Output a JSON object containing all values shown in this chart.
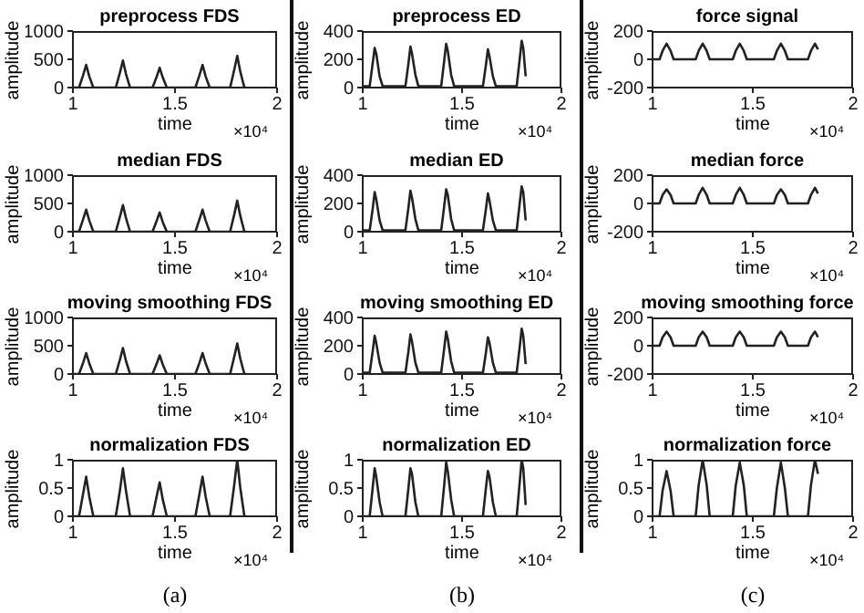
{
  "chart_data": [
    {
      "type": "line",
      "title": "preprocess FDS",
      "xlabel": "time",
      "ylabel": "amplitude",
      "color": "#222222",
      "xlim": [
        1,
        2
      ],
      "xticks": [
        1,
        1.5,
        2
      ],
      "ylim": [
        0,
        1000
      ],
      "yticks": [
        0,
        500,
        1000
      ],
      "annotations": [
        "×10⁴"
      ],
      "x": [
        1,
        1.03,
        1.05,
        1.065,
        1.08,
        1.1,
        1.21,
        1.23,
        1.245,
        1.26,
        1.28,
        1.39,
        1.41,
        1.425,
        1.44,
        1.46,
        1.6,
        1.62,
        1.635,
        1.65,
        1.67,
        1.77,
        1.79,
        1.805,
        1.82,
        1.84,
        1.85
      ],
      "values": [
        0,
        0,
        220,
        400,
        200,
        0,
        0,
        260,
        480,
        240,
        0,
        0,
        190,
        350,
        180,
        0,
        0,
        220,
        400,
        200,
        0,
        0,
        310,
        560,
        280,
        0,
        0
      ]
    },
    {
      "type": "line",
      "title": "median FDS",
      "xlabel": "time",
      "ylabel": "amplitude",
      "color": "#222222",
      "xlim": [
        1,
        2
      ],
      "xticks": [
        1,
        1.5,
        2
      ],
      "ylim": [
        0,
        1000
      ],
      "yticks": [
        0,
        500,
        1000
      ],
      "annotations": [
        "×10⁴"
      ],
      "x": [
        1,
        1.03,
        1.05,
        1.065,
        1.08,
        1.1,
        1.21,
        1.23,
        1.245,
        1.26,
        1.28,
        1.39,
        1.41,
        1.425,
        1.44,
        1.46,
        1.6,
        1.62,
        1.635,
        1.65,
        1.67,
        1.77,
        1.79,
        1.805,
        1.82,
        1.84,
        1.85
      ],
      "values": [
        0,
        0,
        220,
        390,
        200,
        0,
        0,
        260,
        470,
        240,
        0,
        0,
        190,
        340,
        170,
        0,
        0,
        220,
        390,
        200,
        0,
        0,
        300,
        550,
        280,
        0,
        0
      ]
    },
    {
      "type": "line",
      "title": "moving smoothing FDS",
      "xlabel": "time",
      "ylabel": "amplitude",
      "color": "#222222",
      "xlim": [
        1,
        2
      ],
      "xticks": [
        1,
        1.5,
        2
      ],
      "ylim": [
        0,
        1000
      ],
      "yticks": [
        0,
        500,
        1000
      ],
      "annotations": [
        "×10⁴"
      ],
      "x": [
        1,
        1.03,
        1.05,
        1.065,
        1.08,
        1.1,
        1.21,
        1.23,
        1.245,
        1.26,
        1.28,
        1.39,
        1.41,
        1.425,
        1.44,
        1.46,
        1.6,
        1.62,
        1.635,
        1.65,
        1.67,
        1.77,
        1.79,
        1.805,
        1.82,
        1.84,
        1.85
      ],
      "values": [
        0,
        0,
        200,
        370,
        190,
        0,
        0,
        250,
        460,
        230,
        0,
        0,
        180,
        330,
        170,
        0,
        0,
        200,
        370,
        190,
        0,
        0,
        300,
        540,
        270,
        0,
        0
      ]
    },
    {
      "type": "line",
      "title": "normalization FDS",
      "xlabel": "time",
      "ylabel": "amplitude",
      "color": "#222222",
      "xlim": [
        1,
        2
      ],
      "xticks": [
        1,
        1.5,
        2
      ],
      "ylim": [
        0,
        1
      ],
      "yticks": [
        0,
        0.5,
        1
      ],
      "annotations": [
        "×10⁴",
        "(a)"
      ],
      "x": [
        1,
        1.03,
        1.05,
        1.065,
        1.08,
        1.1,
        1.21,
        1.23,
        1.245,
        1.26,
        1.28,
        1.39,
        1.41,
        1.425,
        1.44,
        1.46,
        1.6,
        1.62,
        1.635,
        1.65,
        1.67,
        1.77,
        1.79,
        1.805,
        1.82,
        1.84,
        1.85
      ],
      "values": [
        0,
        0,
        0.4,
        0.7,
        0.35,
        0,
        0,
        0.45,
        0.85,
        0.45,
        0,
        0,
        0.35,
        0.6,
        0.3,
        0,
        0,
        0.4,
        0.7,
        0.35,
        0,
        0,
        0.55,
        1,
        0.5,
        0,
        0
      ]
    },
    {
      "type": "line",
      "title": "preprocess ED",
      "xlabel": "time",
      "ylabel": "amplitude",
      "color": "#222222",
      "xlim": [
        1,
        2
      ],
      "xticks": [
        1,
        1.5,
        2
      ],
      "ylim": [
        0,
        400
      ],
      "yticks": [
        0,
        200,
        400
      ],
      "annotations": [
        "×10⁴"
      ],
      "x": [
        1,
        1.035,
        1.05,
        1.06,
        1.068,
        1.085,
        1.1,
        1.215,
        1.23,
        1.24,
        1.248,
        1.265,
        1.28,
        1.395,
        1.41,
        1.42,
        1.428,
        1.445,
        1.46,
        1.605,
        1.62,
        1.63,
        1.638,
        1.655,
        1.67,
        1.775,
        1.79,
        1.8,
        1.808,
        1.82
      ],
      "values": [
        10,
        10,
        170,
        280,
        240,
        80,
        10,
        10,
        170,
        290,
        240,
        90,
        10,
        10,
        190,
        310,
        260,
        90,
        10,
        10,
        160,
        270,
        220,
        80,
        10,
        10,
        200,
        330,
        280,
        80
      ]
    },
    {
      "type": "line",
      "title": "median ED",
      "xlabel": "time",
      "ylabel": "amplitude",
      "color": "#222222",
      "xlim": [
        1,
        2
      ],
      "xticks": [
        1,
        1.5,
        2
      ],
      "ylim": [
        0,
        400
      ],
      "yticks": [
        0,
        200,
        400
      ],
      "annotations": [
        "×10⁴"
      ],
      "x": [
        1,
        1.035,
        1.05,
        1.06,
        1.068,
        1.085,
        1.1,
        1.215,
        1.23,
        1.24,
        1.248,
        1.265,
        1.28,
        1.395,
        1.41,
        1.42,
        1.428,
        1.445,
        1.46,
        1.605,
        1.62,
        1.63,
        1.638,
        1.655,
        1.67,
        1.775,
        1.79,
        1.8,
        1.808,
        1.82
      ],
      "values": [
        10,
        10,
        160,
        280,
        230,
        80,
        10,
        10,
        170,
        290,
        240,
        90,
        10,
        10,
        180,
        300,
        260,
        90,
        10,
        10,
        160,
        270,
        220,
        80,
        10,
        10,
        200,
        320,
        280,
        80
      ]
    },
    {
      "type": "line",
      "title": "moving smoothing ED",
      "xlabel": "time",
      "ylabel": "amplitude",
      "color": "#222222",
      "xlim": [
        1,
        2
      ],
      "xticks": [
        1,
        1.5,
        2
      ],
      "ylim": [
        0,
        400
      ],
      "yticks": [
        0,
        200,
        400
      ],
      "annotations": [
        "×10⁴"
      ],
      "x": [
        1,
        1.035,
        1.05,
        1.06,
        1.068,
        1.085,
        1.1,
        1.215,
        1.23,
        1.24,
        1.248,
        1.265,
        1.28,
        1.395,
        1.41,
        1.42,
        1.428,
        1.445,
        1.46,
        1.605,
        1.62,
        1.63,
        1.638,
        1.655,
        1.67,
        1.775,
        1.79,
        1.8,
        1.808,
        1.82
      ],
      "values": [
        10,
        10,
        160,
        270,
        220,
        80,
        10,
        10,
        160,
        280,
        230,
        80,
        10,
        10,
        180,
        300,
        250,
        90,
        10,
        10,
        150,
        260,
        220,
        80,
        10,
        10,
        190,
        320,
        270,
        70
      ]
    },
    {
      "type": "line",
      "title": "normalization ED",
      "xlabel": "time",
      "ylabel": "amplitude",
      "color": "#222222",
      "xlim": [
        1,
        2
      ],
      "xticks": [
        1,
        1.5,
        2
      ],
      "ylim": [
        0,
        1
      ],
      "yticks": [
        0,
        0.5,
        1
      ],
      "annotations": [
        "×10⁴",
        "(b)"
      ],
      "x": [
        1,
        1.035,
        1.05,
        1.06,
        1.068,
        1.085,
        1.1,
        1.215,
        1.23,
        1.24,
        1.248,
        1.265,
        1.28,
        1.395,
        1.41,
        1.42,
        1.428,
        1.445,
        1.46,
        1.605,
        1.62,
        1.63,
        1.638,
        1.655,
        1.67,
        1.775,
        1.79,
        1.8,
        1.808,
        1.82
      ],
      "values": [
        0,
        0,
        0.5,
        0.85,
        0.7,
        0.25,
        0,
        0,
        0.5,
        0.85,
        0.75,
        0.25,
        0,
        0,
        0.55,
        0.95,
        0.8,
        0.3,
        0,
        0,
        0.5,
        0.8,
        0.7,
        0.25,
        0,
        0,
        0.6,
        1,
        0.85,
        0.2
      ]
    },
    {
      "type": "line",
      "title": "force signal",
      "xlabel": "time",
      "ylabel": "amplitude",
      "color": "#222222",
      "xlim": [
        1,
        2
      ],
      "xticks": [
        1,
        1.5,
        2
      ],
      "ylim": [
        -200,
        200
      ],
      "yticks": [
        -200,
        0,
        200
      ],
      "annotations": [
        "×10⁴"
      ],
      "x": [
        1,
        1.035,
        1.05,
        1.07,
        1.09,
        1.105,
        1.215,
        1.23,
        1.25,
        1.27,
        1.285,
        1.4,
        1.415,
        1.435,
        1.455,
        1.47,
        1.605,
        1.62,
        1.64,
        1.66,
        1.675,
        1.775,
        1.79,
        1.81,
        1.825
      ],
      "values": [
        0,
        0,
        60,
        110,
        60,
        0,
        0,
        60,
        110,
        60,
        0,
        0,
        60,
        110,
        60,
        0,
        0,
        60,
        110,
        60,
        0,
        0,
        60,
        110,
        70
      ]
    },
    {
      "type": "line",
      "title": "median force",
      "xlabel": "time",
      "ylabel": "amplitude",
      "color": "#222222",
      "xlim": [
        1,
        2
      ],
      "xticks": [
        1,
        1.5,
        2
      ],
      "ylim": [
        -200,
        200
      ],
      "yticks": [
        -200,
        0,
        200
      ],
      "annotations": [
        "×10⁴"
      ],
      "x": [
        1,
        1.035,
        1.05,
        1.07,
        1.09,
        1.105,
        1.215,
        1.23,
        1.25,
        1.27,
        1.285,
        1.4,
        1.415,
        1.435,
        1.455,
        1.47,
        1.605,
        1.62,
        1.64,
        1.66,
        1.675,
        1.775,
        1.79,
        1.81,
        1.825
      ],
      "values": [
        0,
        0,
        60,
        100,
        60,
        0,
        0,
        60,
        110,
        60,
        0,
        0,
        60,
        110,
        60,
        0,
        0,
        60,
        100,
        60,
        0,
        0,
        60,
        110,
        70
      ]
    },
    {
      "type": "line",
      "title": "moving smoothing force",
      "xlabel": "time",
      "ylabel": "amplitude",
      "color": "#222222",
      "xlim": [
        1,
        2
      ],
      "xticks": [
        1,
        1.5,
        2
      ],
      "ylim": [
        -200,
        200
      ],
      "yticks": [
        -200,
        0,
        200
      ],
      "annotations": [
        "×10⁴"
      ],
      "x": [
        1,
        1.035,
        1.05,
        1.07,
        1.09,
        1.105,
        1.215,
        1.23,
        1.25,
        1.27,
        1.285,
        1.4,
        1.415,
        1.435,
        1.455,
        1.47,
        1.605,
        1.62,
        1.64,
        1.66,
        1.675,
        1.775,
        1.79,
        1.81,
        1.825
      ],
      "values": [
        0,
        0,
        60,
        100,
        60,
        0,
        0,
        60,
        100,
        60,
        0,
        0,
        60,
        100,
        60,
        0,
        0,
        60,
        100,
        60,
        0,
        0,
        60,
        100,
        60
      ]
    },
    {
      "type": "line",
      "title": "normalization force",
      "xlabel": "time",
      "ylabel": "amplitude",
      "color": "#222222",
      "xlim": [
        1,
        2
      ],
      "xticks": [
        1,
        1.5,
        2
      ],
      "ylim": [
        0,
        1
      ],
      "yticks": [
        0,
        0.5,
        1
      ],
      "annotations": [
        "×10⁴",
        "(c)"
      ],
      "x": [
        1,
        1.035,
        1.05,
        1.07,
        1.09,
        1.105,
        1.215,
        1.23,
        1.25,
        1.27,
        1.285,
        1.4,
        1.415,
        1.435,
        1.455,
        1.47,
        1.605,
        1.62,
        1.64,
        1.66,
        1.675,
        1.775,
        1.79,
        1.81,
        1.825
      ],
      "values": [
        0,
        0,
        0.45,
        0.8,
        0.45,
        0,
        0,
        0.55,
        1,
        0.55,
        0,
        0,
        0.55,
        0.95,
        0.55,
        0,
        0,
        0.5,
        0.95,
        0.5,
        0,
        0,
        0.55,
        1,
        0.75
      ]
    }
  ]
}
